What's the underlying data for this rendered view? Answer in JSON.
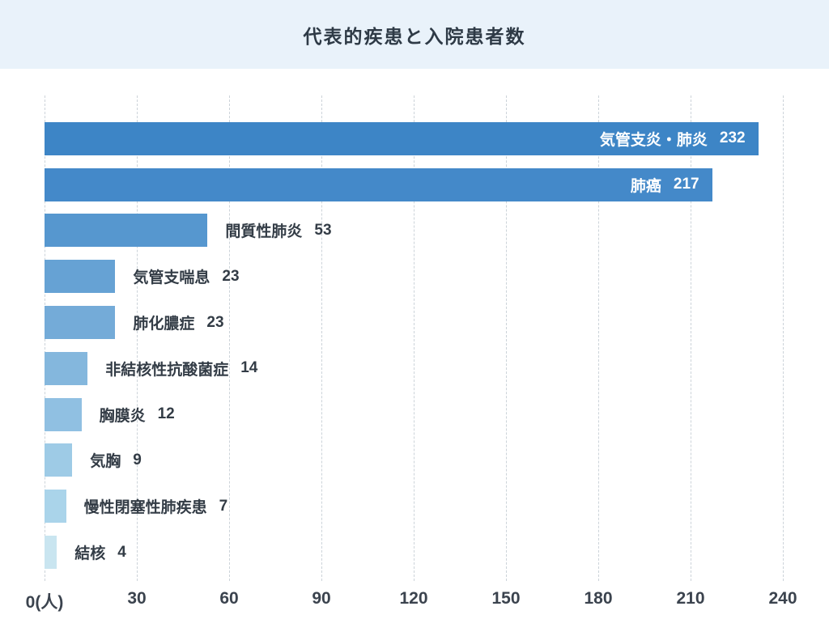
{
  "header": {
    "title": "代表的疾患と入院患者数"
  },
  "chart_data": {
    "type": "bar",
    "orientation": "horizontal",
    "title": "代表的疾患と入院患者数",
    "categories": [
      "気管支炎・肺炎",
      "肺癌",
      "間質性肺炎",
      "気管支喘息",
      "肺化膿症",
      "非結核性抗酸菌症",
      "胸膜炎",
      "気胸",
      "慢性閉塞性肺疾患",
      "結核"
    ],
    "values": [
      232,
      217,
      53,
      23,
      23,
      14,
      12,
      9,
      7,
      4
    ],
    "bar_colors": [
      "#3d85c6",
      "#4489c9",
      "#5697cf",
      "#66a2d4",
      "#74abd8",
      "#84b7dd",
      "#90c0e2",
      "#9ecbe6",
      "#aad4ea",
      "#c9e5f0"
    ],
    "x_ticks": [
      "0(人)",
      "30",
      "60",
      "90",
      "120",
      "150",
      "180",
      "210",
      "240"
    ],
    "x_tick_values": [
      0,
      30,
      60,
      90,
      120,
      150,
      180,
      210,
      240
    ],
    "xlim": [
      0,
      240
    ],
    "xlabel": "",
    "ylabel": "",
    "unit": "人",
    "grid": "dashed-vertical",
    "legend": "none",
    "value_labels": "shown-next-to-bars"
  },
  "colors": {
    "header_background": "#e9f2fa",
    "page_background": "#ffffff",
    "title_text": "#2e3a46",
    "label_text": "#333c46",
    "inside_label_text": "#ffffff",
    "axis_text": "#3b434e",
    "gridline": "#ccd3d9"
  }
}
